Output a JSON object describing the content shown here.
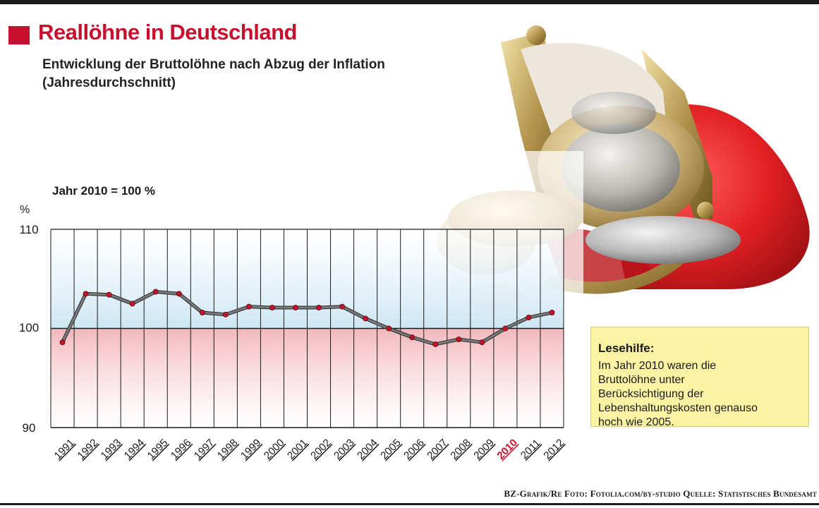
{
  "title": "Reallöhne in Deutschland",
  "subtitle": "Entwicklung der Bruttolöhne nach Abzug der Inflation (Jahresdurchschnitt)",
  "colors": {
    "accent": "#c8102e",
    "line": "#7a7a7a",
    "marker": "#c0142c",
    "above_band": "#cde6f3",
    "below_band": "#f2b7bd",
    "reader_box": "#fbf3a3",
    "highlight_label": "#c8102e"
  },
  "chart_data": {
    "type": "line",
    "basis_label": "Jahr 2010 = 100 %",
    "ylabel": "%",
    "ylim": [
      90,
      110
    ],
    "yticks": [
      90,
      100,
      110
    ],
    "reference_line": 100,
    "grid": "vertical per year",
    "highlight_category": "2010",
    "categories": [
      "1991",
      "1992",
      "1993",
      "1994",
      "1995",
      "1996",
      "1997",
      "1998",
      "1999",
      "2000",
      "2001",
      "2002",
      "2003",
      "2004",
      "2005",
      "2006",
      "2007",
      "2008",
      "2009",
      "2010",
      "2011",
      "2012"
    ],
    "series": [
      {
        "values": [
          98.6,
          103.5,
          103.4,
          102.5,
          103.7,
          103.5,
          101.6,
          101.4,
          102.2,
          102.1,
          102.1,
          102.1,
          102.2,
          101.0,
          100.0,
          99.1,
          98.4,
          98.9,
          98.6,
          100.0,
          101.1,
          101.6
        ]
      }
    ]
  },
  "reader": {
    "heading": "Lesehilfe:",
    "text": "Im Jahr 2010 waren die Bruttolöhne unter Berücksichtigung der Lebenshaltungskosten genauso hoch wie 2005."
  },
  "credits": "BZ-Grafik/Re Foto: Fotolia.com/by-studio Quelle: Statistisches Bundesamt"
}
